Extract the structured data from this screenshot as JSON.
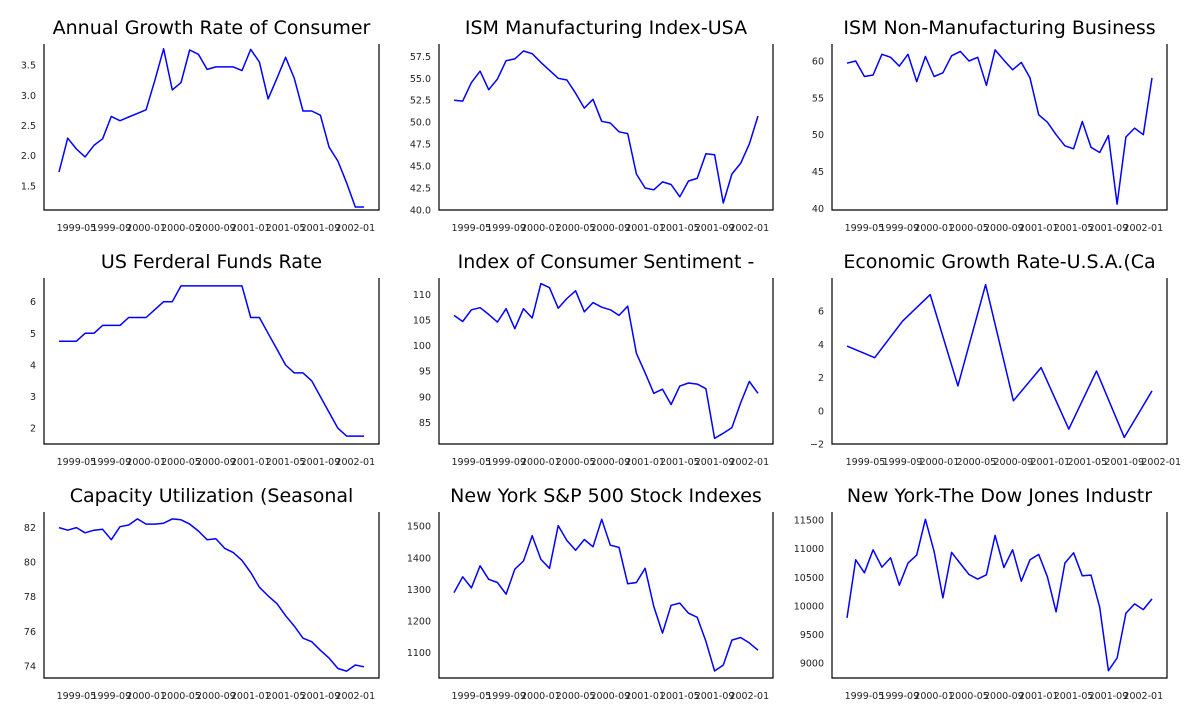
{
  "figure": {
    "line_color": "#0000ff",
    "x_tick_labels": [
      "1999-05",
      "1999-09",
      "2000-01",
      "2000-05",
      "2000-09",
      "2001-01",
      "2001-05",
      "2001-09",
      "2002-01"
    ]
  },
  "chart_data": [
    {
      "type": "line",
      "title": "Annual Growth Rate of Consumer",
      "xlabel": "",
      "ylabel": "",
      "x_start": "1999-03",
      "frequency": "monthly",
      "ylim": [
        1.1,
        3.85
      ],
      "yticks": [
        1.5,
        2.0,
        2.5,
        3.0,
        3.5
      ],
      "ytick_labels": [
        "1.5",
        "2.0",
        "2.5",
        "3.0",
        "3.5"
      ],
      "values": [
        1.73,
        2.29,
        2.11,
        1.98,
        2.17,
        2.28,
        2.65,
        2.58,
        2.64,
        2.7,
        2.76,
        3.25,
        3.77,
        3.09,
        3.21,
        3.75,
        3.68,
        3.43,
        3.47,
        3.47,
        3.47,
        3.41,
        3.76,
        3.55,
        2.94,
        3.28,
        3.63,
        3.28,
        2.74,
        2.74,
        2.67,
        2.14,
        1.91,
        1.55,
        1.15,
        1.15
      ],
      "grid": false,
      "legend": "none"
    },
    {
      "type": "line",
      "title": "ISM Manufacturing Index-USA",
      "xlabel": "",
      "ylabel": "",
      "x_start": "1999-03",
      "frequency": "monthly",
      "ylim": [
        40.0,
        58.9
      ],
      "yticks": [
        40.0,
        42.5,
        45.0,
        47.5,
        50.0,
        52.5,
        55.0,
        57.5
      ],
      "ytick_labels": [
        "40.0",
        "42.5",
        "45.0",
        "47.5",
        "50.0",
        "52.5",
        "55.0",
        "57.5"
      ],
      "values": [
        52.5,
        52.4,
        54.5,
        55.8,
        53.7,
        54.9,
        57.0,
        57.2,
        58.1,
        57.8,
        56.8,
        55.9,
        55.0,
        54.8,
        53.3,
        51.6,
        52.6,
        50.1,
        49.9,
        48.9,
        48.7,
        44.1,
        42.5,
        42.3,
        43.2,
        42.9,
        41.5,
        43.3,
        43.6,
        46.4,
        46.3,
        40.8,
        44.1,
        45.3,
        47.5,
        50.7
      ],
      "grid": false,
      "legend": "none"
    },
    {
      "type": "line",
      "title": "ISM Non-Manufacturing Business",
      "xlabel": "",
      "ylabel": "",
      "x_start": "1999-03",
      "frequency": "monthly",
      "ylim": [
        39.8,
        62.3
      ],
      "yticks": [
        40,
        45,
        50,
        55,
        60
      ],
      "ytick_labels": [
        "40",
        "45",
        "50",
        "55",
        "60"
      ],
      "values": [
        59.7,
        60.0,
        57.9,
        58.1,
        60.9,
        60.5,
        59.3,
        60.9,
        57.2,
        60.6,
        57.9,
        58.4,
        60.7,
        61.3,
        60.0,
        60.5,
        56.7,
        61.5,
        60.1,
        58.8,
        59.8,
        57.7,
        52.7,
        51.7,
        50.0,
        48.5,
        48.1,
        51.8,
        48.3,
        47.6,
        49.9,
        40.6,
        49.7,
        50.9,
        50.0,
        57.7
      ],
      "grid": false,
      "legend": "none"
    },
    {
      "type": "line",
      "title": "US Ferderal Funds Rate",
      "xlabel": "",
      "ylabel": "",
      "x_start": "1999-03",
      "frequency": "monthly",
      "ylim": [
        1.5,
        6.75
      ],
      "yticks": [
        2,
        3,
        4,
        5,
        6
      ],
      "ytick_labels": [
        "2",
        "3",
        "4",
        "5",
        "6"
      ],
      "values": [
        4.75,
        4.75,
        4.75,
        5.0,
        5.0,
        5.25,
        5.25,
        5.25,
        5.5,
        5.5,
        5.5,
        5.75,
        6.0,
        6.0,
        6.5,
        6.5,
        6.5,
        6.5,
        6.5,
        6.5,
        6.5,
        6.5,
        5.5,
        5.5,
        5.0,
        4.5,
        4.0,
        3.75,
        3.75,
        3.5,
        3.0,
        2.5,
        2.0,
        1.75,
        1.75,
        1.75
      ],
      "grid": false,
      "legend": "none"
    },
    {
      "type": "line",
      "title": "Index of Consumer Sentiment -",
      "xlabel": "",
      "ylabel": "",
      "x_start": "1999-03",
      "frequency": "monthly",
      "ylim": [
        80.8,
        113.2
      ],
      "yticks": [
        85,
        90,
        95,
        100,
        105,
        110
      ],
      "ytick_labels": [
        "85",
        "90",
        "95",
        "100",
        "105",
        "110"
      ],
      "values": [
        105.9,
        104.7,
        107.0,
        107.4,
        106.1,
        104.6,
        107.2,
        103.3,
        107.2,
        105.4,
        112.1,
        111.3,
        107.3,
        109.2,
        110.7,
        106.6,
        108.4,
        107.5,
        107.0,
        105.9,
        107.7,
        98.5,
        94.7,
        90.7,
        91.5,
        88.5,
        92.1,
        92.7,
        92.5,
        91.6,
        81.9,
        82.9,
        84.0,
        88.8,
        93.0,
        90.7
      ],
      "grid": false,
      "legend": "none"
    },
    {
      "type": "line",
      "title": "Economic Growth Rate-U.S.A.(Ca",
      "xlabel": "",
      "ylabel": "",
      "x_start": "1999-03",
      "frequency": "quarterly",
      "ylim": [
        -2.0,
        8.0
      ],
      "yticks": [
        -2,
        0,
        2,
        4,
        6
      ],
      "ytick_labels": [
        "−2",
        "0",
        "2",
        "4",
        "6"
      ],
      "values": [
        3.9,
        3.2,
        5.4,
        7.0,
        1.5,
        7.6,
        0.6,
        2.6,
        -1.1,
        2.4,
        -1.6,
        1.2
      ],
      "grid": false,
      "legend": "none"
    },
    {
      "type": "line",
      "title": "Capacity Utilization (Seasonal",
      "xlabel": "",
      "ylabel": "",
      "x_start": "1999-03",
      "frequency": "monthly",
      "ylim": [
        73.3,
        82.9
      ],
      "yticks": [
        74,
        76,
        78,
        80,
        82
      ],
      "ytick_labels": [
        "74",
        "76",
        "78",
        "80",
        "82"
      ],
      "values": [
        82.0,
        81.85,
        82.0,
        81.7,
        81.85,
        81.9,
        81.3,
        82.05,
        82.15,
        82.5,
        82.2,
        82.2,
        82.25,
        82.5,
        82.45,
        82.2,
        81.8,
        81.3,
        81.35,
        80.8,
        80.55,
        80.1,
        79.4,
        78.55,
        78.05,
        77.6,
        76.9,
        76.3,
        75.6,
        75.4,
        74.9,
        74.45,
        73.85,
        73.7,
        74.05,
        73.95
      ],
      "grid": false,
      "legend": "none"
    },
    {
      "type": "line",
      "title": "New York S&P 500 Stock Indexes",
      "xlabel": "",
      "ylabel": "",
      "x_start": "1999-03",
      "frequency": "monthly",
      "ylim": [
        1020,
        1545
      ],
      "yticks": [
        1100,
        1200,
        1300,
        1400,
        1500
      ],
      "ytick_labels": [
        "1100",
        "1200",
        "1300",
        "1400",
        "1500"
      ],
      "values": [
        1290,
        1340,
        1305,
        1375,
        1332,
        1322,
        1285,
        1364,
        1390,
        1470,
        1395,
        1367,
        1502,
        1455,
        1424,
        1458,
        1435,
        1522,
        1440,
        1433,
        1318,
        1322,
        1367,
        1246,
        1162,
        1250,
        1257,
        1225,
        1212,
        1136,
        1042,
        1061,
        1140,
        1148,
        1131,
        1108
      ],
      "grid": false,
      "legend": "none"
    },
    {
      "type": "line",
      "title": "New York-The Dow Jones Industr",
      "xlabel": "",
      "ylabel": "",
      "x_start": "1999-03",
      "frequency": "monthly",
      "ylim": [
        8740,
        11640
      ],
      "yticks": [
        9000,
        9500,
        10000,
        10500,
        11000,
        11500
      ],
      "ytick_labels": [
        "9000",
        "9500",
        "10000",
        "10500",
        "11000",
        "11500"
      ],
      "values": [
        9790,
        10805,
        10578,
        10980,
        10677,
        10840,
        10361,
        10747,
        10887,
        11512,
        10951,
        10139,
        10934,
        10741,
        10548,
        10467,
        10543,
        11232,
        10671,
        10980,
        10431,
        10805,
        10899,
        10508,
        9895,
        10747,
        10928,
        10525,
        10537,
        9977,
        8867,
        9089,
        9871,
        10035,
        9935,
        10122
      ],
      "grid": false,
      "legend": "none"
    }
  ]
}
